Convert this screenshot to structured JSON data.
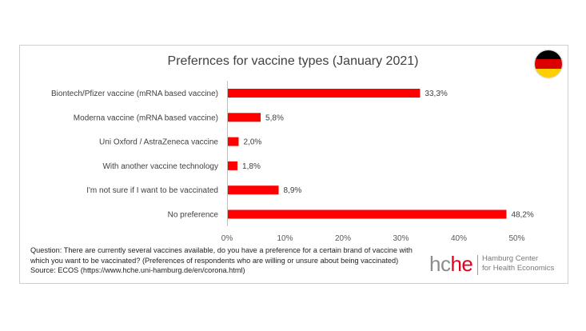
{
  "chart_data": {
    "type": "bar",
    "orientation": "horizontal",
    "title": "Prefernces for vaccine types (January 2021)",
    "categories": [
      "Biontech/Pfizer vaccine (mRNA based vaccine)",
      "Moderna vaccine (mRNA based vaccine)",
      "Uni Oxford / AstraZeneca vaccine",
      "With another vaccine technology",
      "I'm not sure if I want to be vaccinated",
      "No preference"
    ],
    "values": [
      33.3,
      5.8,
      2.0,
      1.8,
      8.9,
      48.2
    ],
    "value_labels": [
      "33,3%",
      "5,8%",
      "2,0%",
      "1,8%",
      "8,9%",
      "48,2%"
    ],
    "xlim": [
      0,
      50
    ],
    "x_ticks": [
      "0%",
      "10%",
      "20%",
      "30%",
      "40%",
      "50%"
    ],
    "bar_color": "#ff0000",
    "grid": false,
    "legend": "none"
  },
  "footer": {
    "question_line1": "Question: There are currently several vaccines available, do you have a preference for a certain brand of vaccine with",
    "question_line2": "which you want to be vaccinated? (Preferences of respondents who are willing or unsure about being vaccinated)",
    "source": "Source: ECOS (https://www.hche.uni-hamburg.de/en/corona.html)"
  },
  "logo": {
    "word_hc": "hc",
    "word_he": "he",
    "line1": "Hamburg Center",
    "line2": "for Health Economics"
  },
  "flag": {
    "icon": "germany-flag-icon",
    "colors": [
      "#000000",
      "#dd0000",
      "#ffce00"
    ]
  }
}
